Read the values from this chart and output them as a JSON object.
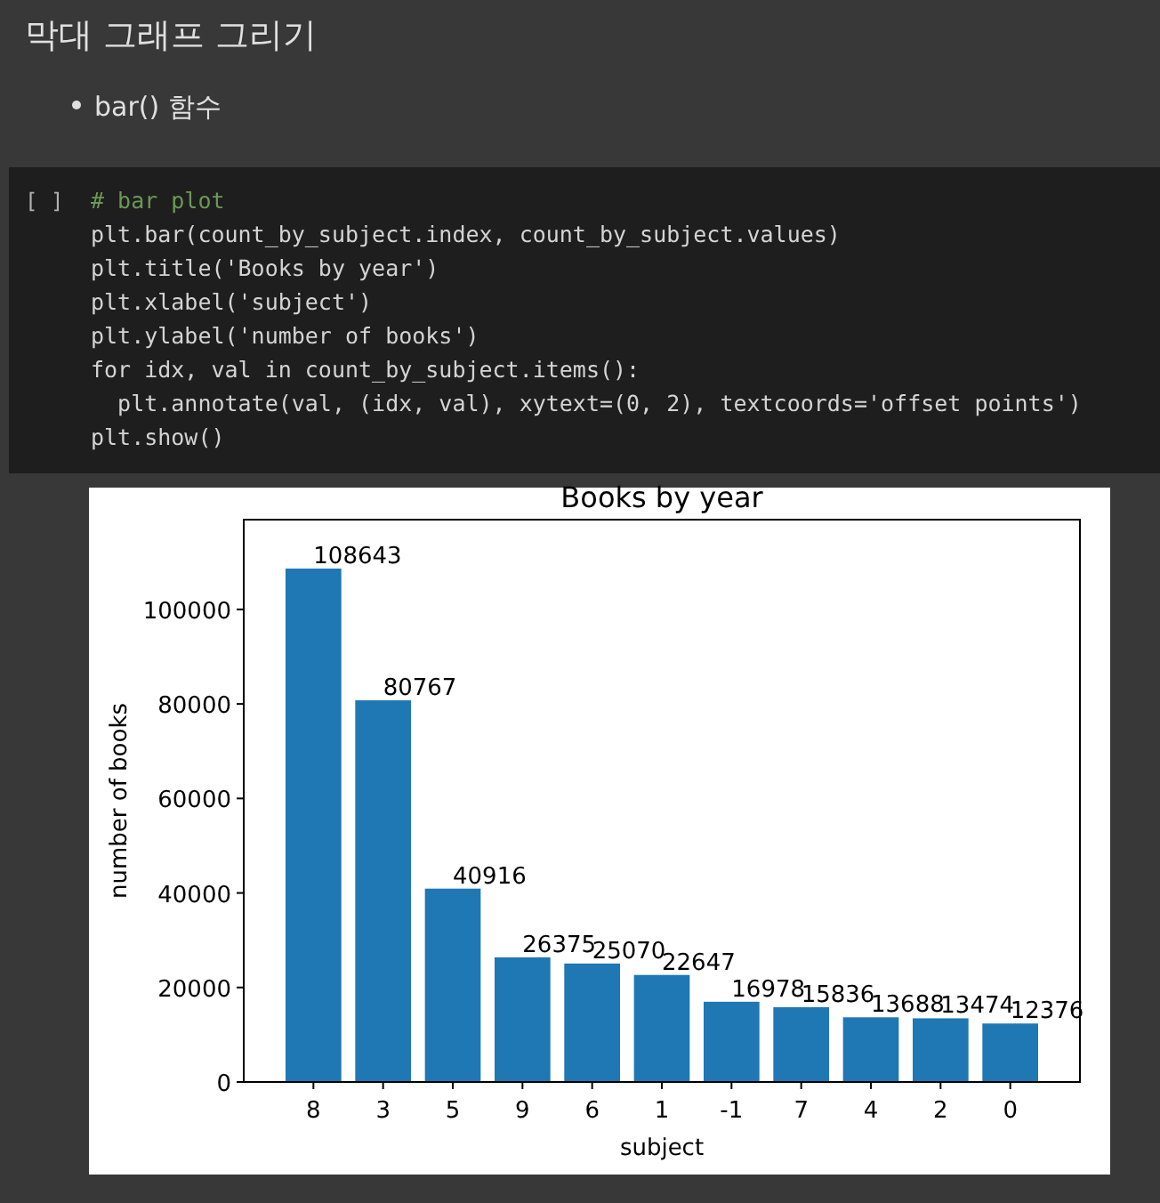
{
  "chart_data": {
    "type": "bar",
    "title": "Books by year",
    "xlabel": "subject",
    "ylabel": "number of books",
    "categories": [
      "8",
      "3",
      "5",
      "9",
      "6",
      "1",
      "-1",
      "7",
      "4",
      "2",
      "0"
    ],
    "values": [
      108643,
      80767,
      40916,
      26375,
      25070,
      22647,
      16978,
      15836,
      13688,
      13474,
      12376
    ],
    "color": "#1f77b4",
    "ylim": [
      0,
      119000
    ],
    "yticks": [
      0,
      20000,
      40000,
      60000,
      80000,
      100000
    ],
    "data_labels": true,
    "annotations": [
      "막대 그래프 그리기",
      "bar() 함수",
      "[ ]",
      "# bar plot",
      "plt.bar(count_by_subject.index, count_by_subject.values)",
      "plt.title('Books by year')",
      "plt.xlabel('subject')",
      "plt.ylabel('number of books')",
      "for idx, val in count_by_subject.items():",
      "  plt.annotate(val, (idx, val), xytext=(0, 2), textcoords='offset points')",
      "plt.show()"
    ]
  }
}
